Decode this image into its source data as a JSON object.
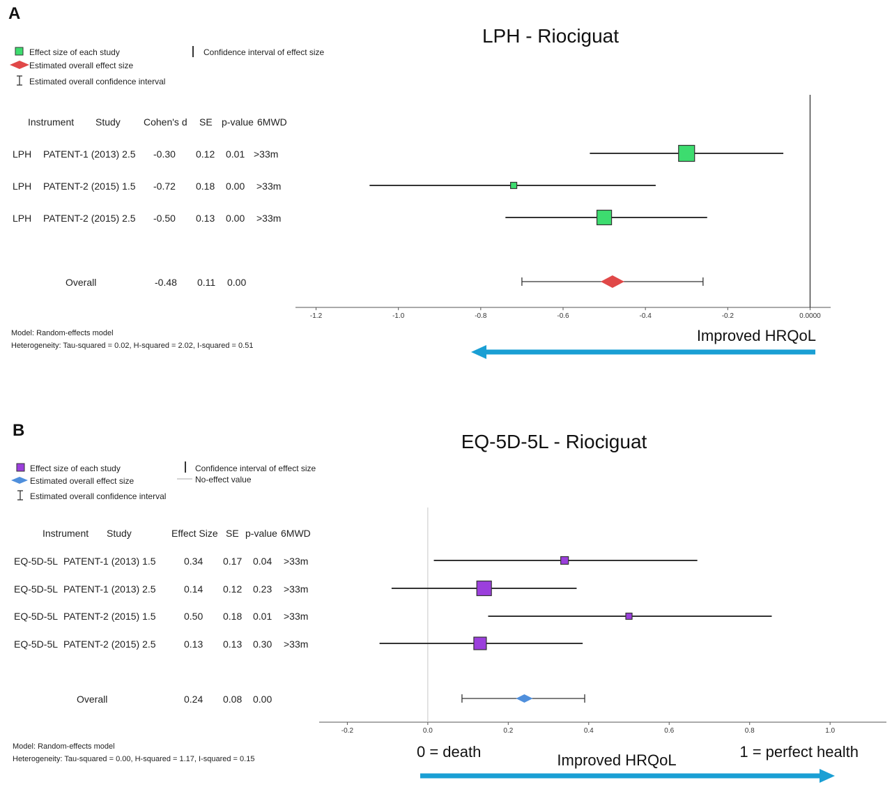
{
  "colors": {
    "panel_a_marker": "#3ddc6f",
    "panel_a_diamond": "#e04848",
    "panel_b_marker": "#9b3fdc",
    "panel_b_diamond": "#4f8fdc",
    "arrow": "#1a9fd4",
    "line": "#333333"
  },
  "icons": {
    "study_marker": "square",
    "overall_marker": "diamond",
    "confidence_interval": "vertical-bar",
    "overall_confidence_interval": "i-beam",
    "arrow": "arrow"
  },
  "chart_data": [
    {
      "type": "forest",
      "panel_label": "A",
      "title": "LPH - Riociguat",
      "legend": {
        "study_effect": "Effect size of each study",
        "overall_effect": "Estimated overall effect size",
        "overall_ci": "Estimated overall confidence interval",
        "ci": "Confidence interval of effect size"
      },
      "columns": [
        "Instrument",
        "Study",
        "Cohen's d",
        "SE",
        "p-value",
        "6MWD"
      ],
      "rows": [
        {
          "instrument": "LPH",
          "study": "PATENT-1 (2013) 2.5",
          "effect": "-0.30",
          "se": "0.12",
          "p": "0.01",
          "mwd": ">33m",
          "value": -0.3,
          "ci": [
            -0.535,
            -0.065
          ]
        },
        {
          "instrument": "LPH",
          "study": "PATENT-2 (2015) 1.5",
          "effect": "-0.72",
          "se": "0.18",
          "p": "0.00",
          "mwd": ">33m",
          "value": -0.72,
          "ci": [
            -1.07,
            -0.375
          ]
        },
        {
          "instrument": "LPH",
          "study": "PATENT-2 (2015) 2.5",
          "effect": "-0.50",
          "se": "0.13",
          "p": "0.00",
          "mwd": ">33m",
          "value": -0.5,
          "ci": [
            -0.74,
            -0.25
          ]
        }
      ],
      "overall": {
        "label": "Overall",
        "effect": "-0.48",
        "se": "0.11",
        "p": "0.00",
        "value": -0.48,
        "ci": [
          -0.7,
          -0.26
        ]
      },
      "x_ticks": [
        -1.2,
        -1.0,
        -0.8,
        -0.6,
        -0.4,
        -0.2,
        0.0
      ],
      "x_tick_labels": [
        "-1.2",
        "-1.0",
        "-0.8",
        "-0.6",
        "-0.4",
        "-0.2",
        "0.0000"
      ],
      "xlim": [
        -1.25,
        0.05
      ],
      "no_effect_value": 0.0,
      "grid": false,
      "model": "Model: Random-effects model",
      "heterogeneity": "Heterogeneity: Tau-squared = 0.02, H-squared = 2.02, I-squared = 0.51",
      "arrow_label": "Improved HRQoL",
      "arrow_direction": "left"
    },
    {
      "type": "forest",
      "panel_label": "B",
      "title": "EQ-5D-5L - Riociguat",
      "legend": {
        "study_effect": "Effect size of each study",
        "overall_effect": "Estimated overall effect size",
        "overall_ci": "Estimated overall confidence interval",
        "ci": "Confidence interval of effect size",
        "no_effect": "No-effect value"
      },
      "columns": [
        "Instrument",
        "Study",
        "Effect Size",
        "SE",
        "p-value",
        "6MWD"
      ],
      "rows": [
        {
          "instrument": "EQ-5D-5L",
          "study": "PATENT-1 (2013) 1.5",
          "effect": "0.34",
          "se": "0.17",
          "p": "0.04",
          "mwd": ">33m",
          "value": 0.34,
          "ci": [
            0.015,
            0.67
          ]
        },
        {
          "instrument": "EQ-5D-5L",
          "study": "PATENT-1 (2013) 2.5",
          "effect": "0.14",
          "se": "0.12",
          "p": "0.23",
          "mwd": ">33m",
          "value": 0.14,
          "ci": [
            -0.09,
            0.37
          ]
        },
        {
          "instrument": "EQ-5D-5L",
          "study": "PATENT-2 (2015) 1.5",
          "effect": "0.50",
          "se": "0.18",
          "p": "0.01",
          "mwd": ">33m",
          "value": 0.5,
          "ci": [
            0.15,
            0.855
          ]
        },
        {
          "instrument": "EQ-5D-5L",
          "study": "PATENT-2 (2015) 2.5",
          "effect": "0.13",
          "se": "0.13",
          "p": "0.30",
          "mwd": ">33m",
          "value": 0.13,
          "ci": [
            -0.12,
            0.385
          ]
        }
      ],
      "overall": {
        "label": "Overall",
        "effect": "0.24",
        "se": "0.08",
        "p": "0.00",
        "value": 0.24,
        "ci": [
          0.085,
          0.39
        ]
      },
      "x_ticks": [
        -0.2,
        0.0,
        0.2,
        0.4,
        0.6,
        0.8,
        1.0
      ],
      "x_tick_labels": [
        "-0.2",
        "0.0",
        "0.2",
        "0.4",
        "0.6",
        "0.8",
        "1.0"
      ],
      "xlim": [
        -0.27,
        1.14
      ],
      "no_effect_value": 0.0,
      "grid": false,
      "model": "Model: Random-effects model",
      "heterogeneity": "Heterogeneity: Tau-squared = 0.00, H-squared = 1.17, I-squared = 0.15",
      "arrow_label": "Improved HRQoL",
      "arrow_direction": "right",
      "anchor_low_label": "0 = death",
      "anchor_high_label": "1 = perfect health"
    }
  ]
}
